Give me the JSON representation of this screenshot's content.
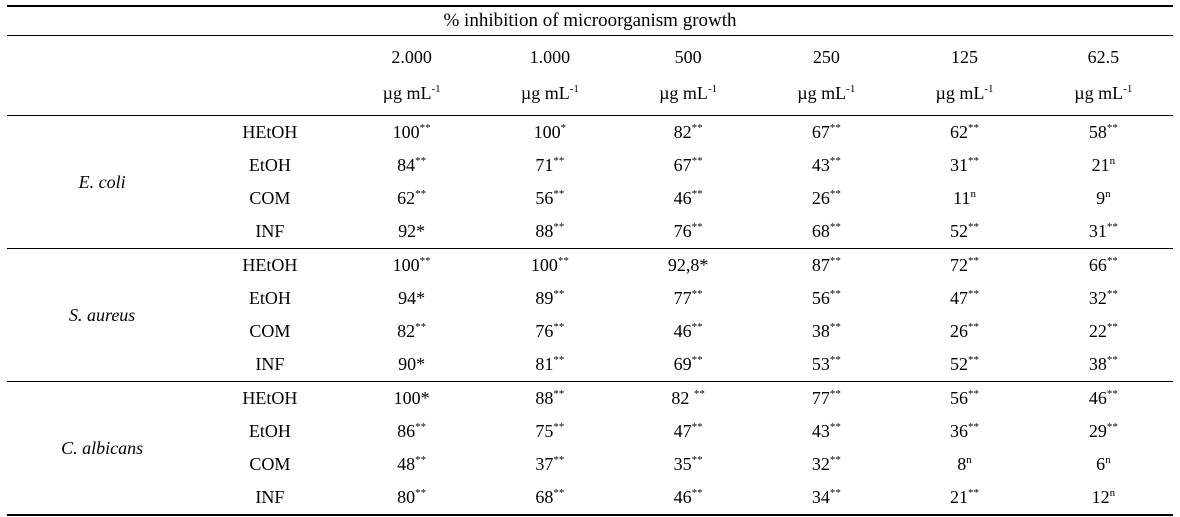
{
  "chart_data": {
    "type": "table",
    "title": "% inhibition of microorganism growth",
    "concentration_columns": [
      {
        "value": "2.000",
        "unit": "µg mL",
        "unit_sup": "-1"
      },
      {
        "value": "1.000",
        "unit": "µg mL",
        "unit_sup": "-1"
      },
      {
        "value": "500",
        "unit": "µg mL",
        "unit_sup": "-1"
      },
      {
        "value": "250",
        "unit": "µg mL",
        "unit_sup": "-1"
      },
      {
        "value": "125",
        "unit": "µg mL",
        "unit_sup": "-1"
      },
      {
        "value": "62.5",
        "unit": "µg mL",
        "unit_sup": "-1"
      }
    ],
    "groups": [
      {
        "organism": "E. coli",
        "rows": [
          {
            "extract": "HEtOH",
            "values": [
              {
                "v": "100",
                "m": "**",
                "raised": true
              },
              {
                "v": "100",
                "m": "*",
                "raised": true
              },
              {
                "v": "82",
                "m": "**",
                "raised": true
              },
              {
                "v": "67",
                "m": "**",
                "raised": true
              },
              {
                "v": "62",
                "m": "**",
                "raised": true
              },
              {
                "v": "58",
                "m": "**",
                "raised": true
              }
            ]
          },
          {
            "extract": "EtOH",
            "values": [
              {
                "v": "84",
                "m": "**",
                "raised": true
              },
              {
                "v": "71",
                "m": "**",
                "raised": true
              },
              {
                "v": "67",
                "m": "**",
                "raised": true
              },
              {
                "v": "43",
                "m": "**",
                "raised": true
              },
              {
                "v": "31",
                "m": "**",
                "raised": true
              },
              {
                "v": "21",
                "m": "n",
                "raised": true
              }
            ]
          },
          {
            "extract": "COM",
            "values": [
              {
                "v": "62",
                "m": "**",
                "raised": true
              },
              {
                "v": "56",
                "m": "**",
                "raised": true
              },
              {
                "v": "46",
                "m": "**",
                "raised": true
              },
              {
                "v": "26",
                "m": "**",
                "raised": true
              },
              {
                "v": "11",
                "m": "n",
                "raised": true
              },
              {
                "v": "9",
                "m": "n",
                "raised": true
              }
            ]
          },
          {
            "extract": "INF",
            "values": [
              {
                "v": "92",
                "m": "*",
                "raised": false
              },
              {
                "v": "88",
                "m": "**",
                "raised": true
              },
              {
                "v": "76",
                "m": "**",
                "raised": true
              },
              {
                "v": "68",
                "m": "**",
                "raised": true
              },
              {
                "v": "52",
                "m": "**",
                "raised": true
              },
              {
                "v": "31",
                "m": "**",
                "raised": true
              }
            ]
          }
        ]
      },
      {
        "organism": "S. aureus",
        "rows": [
          {
            "extract": "HEtOH",
            "values": [
              {
                "v": "100",
                "m": "**",
                "raised": true
              },
              {
                "v": "100",
                "m": "**",
                "raised": true
              },
              {
                "v": "92,8",
                "m": "*",
                "raised": false
              },
              {
                "v": "87",
                "m": "**",
                "raised": true
              },
              {
                "v": "72",
                "m": "**",
                "raised": true
              },
              {
                "v": "66",
                "m": "**",
                "raised": true
              }
            ]
          },
          {
            "extract": "EtOH",
            "values": [
              {
                "v": "94",
                "m": "*",
                "raised": false
              },
              {
                "v": "89",
                "m": "**",
                "raised": true
              },
              {
                "v": "77",
                "m": "**",
                "raised": true
              },
              {
                "v": "56",
                "m": "**",
                "raised": true
              },
              {
                "v": "47",
                "m": "**",
                "raised": true
              },
              {
                "v": "32",
                "m": "**",
                "raised": true
              }
            ]
          },
          {
            "extract": "COM",
            "values": [
              {
                "v": "82",
                "m": "**",
                "raised": true
              },
              {
                "v": "76",
                "m": "**",
                "raised": true
              },
              {
                "v": "46",
                "m": "**",
                "raised": true
              },
              {
                "v": "38",
                "m": "**",
                "raised": true
              },
              {
                "v": "26",
                "m": "**",
                "raised": true
              },
              {
                "v": "22",
                "m": "**",
                "raised": true
              }
            ]
          },
          {
            "extract": "INF",
            "values": [
              {
                "v": "90",
                "m": "*",
                "raised": false
              },
              {
                "v": "81",
                "m": "**",
                "raised": true
              },
              {
                "v": "69",
                "m": "**",
                "raised": true
              },
              {
                "v": "53",
                "m": "**",
                "raised": true
              },
              {
                "v": "52",
                "m": "**",
                "raised": true
              },
              {
                "v": "38",
                "m": "**",
                "raised": true
              }
            ]
          }
        ]
      },
      {
        "organism": "C. albicans",
        "rows": [
          {
            "extract": "HEtOH",
            "values": [
              {
                "v": "100",
                "m": "*",
                "raised": false
              },
              {
                "v": "88",
                "m": "**",
                "raised": true
              },
              {
                "v": "82 ",
                "m": "**",
                "raised": true
              },
              {
                "v": "77",
                "m": "**",
                "raised": true
              },
              {
                "v": "56",
                "m": "**",
                "raised": true
              },
              {
                "v": "46",
                "m": "**",
                "raised": true
              }
            ]
          },
          {
            "extract": "EtOH",
            "values": [
              {
                "v": "86",
                "m": "**",
                "raised": true
              },
              {
                "v": "75",
                "m": "**",
                "raised": true
              },
              {
                "v": "47",
                "m": "**",
                "raised": true
              },
              {
                "v": "43",
                "m": "**",
                "raised": true
              },
              {
                "v": "36",
                "m": "**",
                "raised": true
              },
              {
                "v": "29",
                "m": "**",
                "raised": true
              }
            ]
          },
          {
            "extract": "COM",
            "values": [
              {
                "v": "48",
                "m": "**",
                "raised": true
              },
              {
                "v": "37",
                "m": "**",
                "raised": true
              },
              {
                "v": "35",
                "m": "**",
                "raised": true
              },
              {
                "v": "32",
                "m": "**",
                "raised": true
              },
              {
                "v": "8",
                "m": "n",
                "raised": true
              },
              {
                "v": "6",
                "m": "n",
                "raised": true
              }
            ]
          },
          {
            "extract": "INF",
            "values": [
              {
                "v": "80",
                "m": "**",
                "raised": true
              },
              {
                "v": "68",
                "m": "**",
                "raised": true
              },
              {
                "v": "46",
                "m": "**",
                "raised": true
              },
              {
                "v": "34",
                "m": "**",
                "raised": true
              },
              {
                "v": "21",
                "m": "**",
                "raised": true
              },
              {
                "v": "12",
                "m": "n",
                "raised": true
              }
            ]
          }
        ]
      }
    ]
  }
}
